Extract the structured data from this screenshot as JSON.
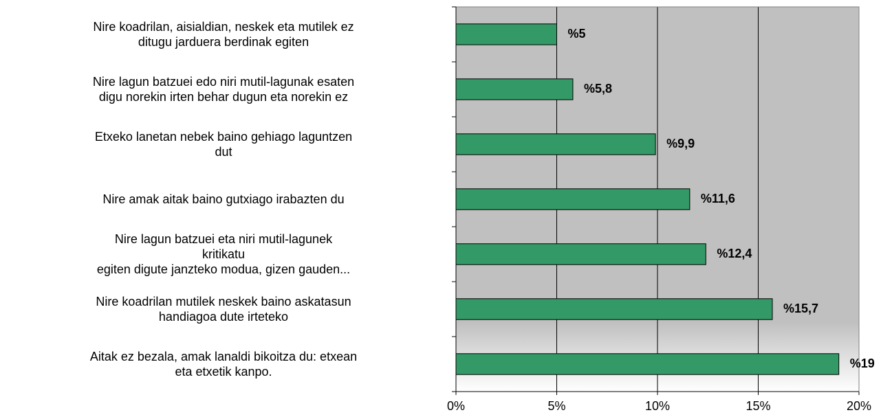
{
  "chart_data": {
    "type": "barh",
    "categories": [
      "Nire koadrilan, aisialdian, neskek eta mutilek ez\nditugu jarduera berdinak egiten",
      "Nire lagun batzuei edo niri mutil-lagunak esaten\ndigu norekin irten behar dugun eta norekin ez",
      "Etxeko lanetan nebek baino gehiago laguntzen\ndut",
      "Nire amak aitak baino gutxiago irabazten du",
      "Nire lagun batzuei eta niri mutil-lagunek\nkritikatu\negiten digute janzteko modua, gizen gauden...",
      "Nire koadrilan mutilek neskek baino askatasun\nhandiagoa dute irteteko",
      "Aitak ez bezala, amak lanaldi bikoitza du: etxean\neta etxetik kanpo."
    ],
    "values": [
      5,
      5.8,
      9.9,
      11.6,
      12.4,
      15.7,
      19
    ],
    "value_labels": [
      "%5",
      "%5,8",
      "%9,9",
      "%11,6",
      "%12,4",
      "%15,7",
      "%19"
    ],
    "color": "#339966",
    "xlim": [
      0,
      20
    ],
    "xticks": [
      {
        "value": 0,
        "label": "0%"
      },
      {
        "value": 5,
        "label": "5%"
      },
      {
        "value": 10,
        "label": "10%"
      },
      {
        "value": 15,
        "label": "15%"
      },
      {
        "value": 20,
        "label": "20%"
      }
    ],
    "grid": true
  }
}
